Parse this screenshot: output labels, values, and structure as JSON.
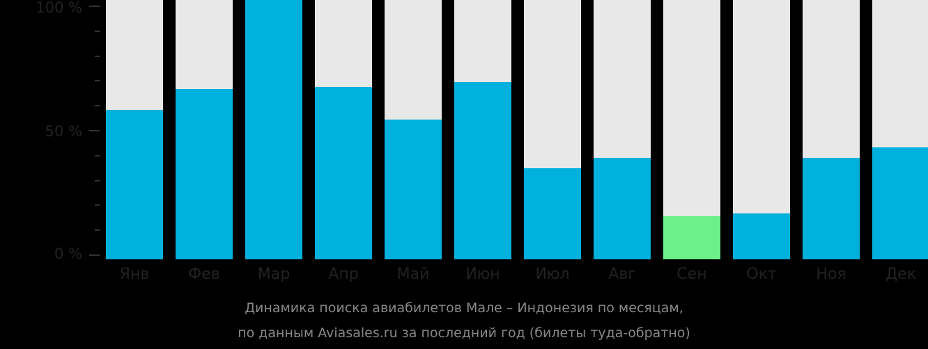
{
  "chart_data": {
    "type": "bar",
    "title": "Динамика поиска авиабилетов Мале – Индонезия по месяцам, по данным Aviasales.ru за последний год (билеты туда-обратно)",
    "xlabel": "",
    "ylabel": "",
    "ylim": [
      0,
      100
    ],
    "y_ticks": [
      "0 %",
      "50 %",
      "100 %"
    ],
    "categories": [
      "Янв",
      "Фев",
      "Мар",
      "Апр",
      "Май",
      "Июн",
      "Июл",
      "Авг",
      "Сен",
      "Окт",
      "Ноя",
      "Дек"
    ],
    "values": [
      59,
      67,
      100,
      68,
      55,
      70,
      36,
      40,
      17,
      18,
      40,
      44
    ],
    "highlight_index": 8,
    "colors": {
      "bar": "#00b0dd",
      "highlight": "#6cf08a",
      "background_bar": "#e8e8e8"
    },
    "grid": false,
    "legend": null
  },
  "axis": {
    "y100": "100 %",
    "y50": "50 %",
    "y0": "0 %"
  },
  "caption": {
    "line1": "Динамика поиска авиабилетов Мале – Индонезия по месяцам,",
    "line2": "по данным Aviasales.ru за последний год (билеты туда-обратно)"
  }
}
